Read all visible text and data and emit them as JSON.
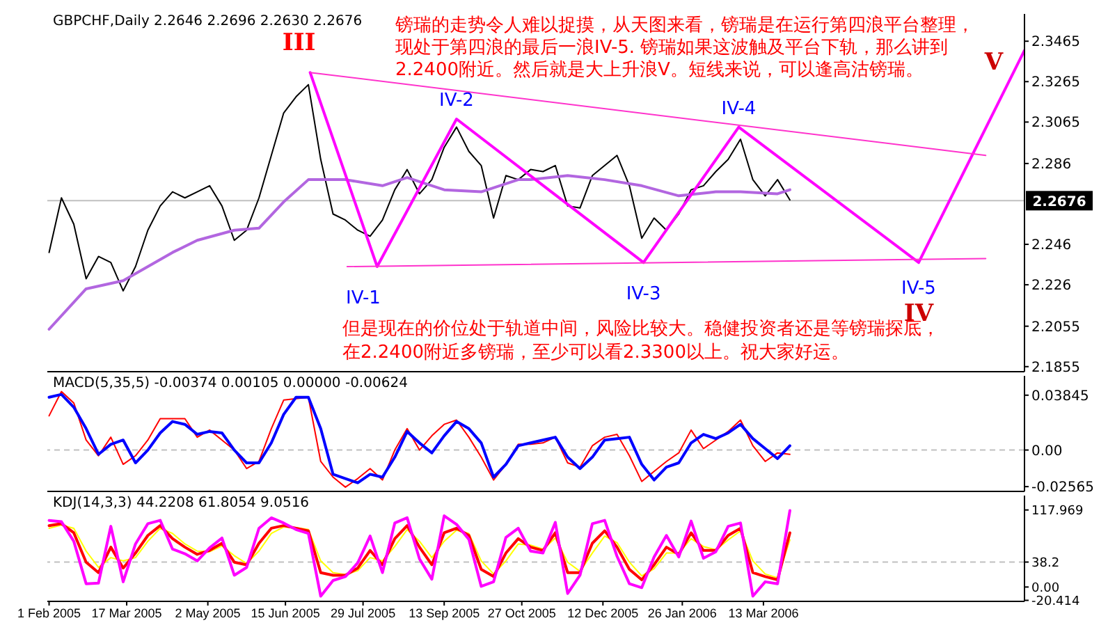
{
  "chart_data": [
    {
      "type": "line",
      "title": "GBPCHF,Daily 2.2646 2.2696 2.2630 2.2676",
      "x": [
        "2005-02-01",
        "2005-02-08",
        "2005-02-15",
        "2005-02-22",
        "2005-03-01",
        "2005-03-08",
        "2005-03-15",
        "2005-03-22",
        "2005-03-29",
        "2005-04-05",
        "2005-04-12",
        "2005-04-19",
        "2005-04-26",
        "2005-05-03",
        "2005-05-10",
        "2005-05-17",
        "2005-05-24",
        "2005-05-31",
        "2005-06-07",
        "2005-06-14",
        "2005-06-21",
        "2005-06-28",
        "2005-07-05",
        "2005-07-12",
        "2005-07-19",
        "2005-07-26",
        "2005-08-02",
        "2005-08-09",
        "2005-08-16",
        "2005-08-23",
        "2005-08-30",
        "2005-09-06",
        "2005-09-13",
        "2005-09-20",
        "2005-09-27",
        "2005-10-04",
        "2005-10-11",
        "2005-10-18",
        "2005-10-25",
        "2005-11-01",
        "2005-11-08",
        "2005-11-15",
        "2005-11-22",
        "2005-11-29",
        "2005-12-06",
        "2005-12-13",
        "2005-12-20",
        "2005-12-27",
        "2006-01-03",
        "2006-01-10",
        "2006-01-17",
        "2006-01-24",
        "2006-01-31",
        "2006-02-07",
        "2006-02-14",
        "2006-02-21",
        "2006-02-28",
        "2006-03-07",
        "2006-03-14",
        "2006-03-21",
        "2006-03-28"
      ],
      "series": [
        {
          "color": "#000000",
          "values": [
            2.242,
            2.269,
            2.256,
            2.229,
            2.24,
            2.237,
            2.223,
            2.235,
            2.253,
            2.265,
            2.272,
            2.269,
            2.272,
            2.275,
            2.265,
            2.248,
            2.253,
            2.269,
            2.29,
            2.311,
            2.319,
            2.325,
            2.288,
            2.261,
            2.258,
            2.253,
            2.25,
            2.258,
            2.273,
            2.283,
            2.271,
            2.278,
            2.294,
            2.304,
            2.292,
            2.285,
            2.259,
            2.28,
            2.278,
            2.283,
            2.282,
            2.285,
            2.265,
            2.264,
            2.28,
            2.285,
            2.29,
            2.275,
            2.249,
            2.259,
            2.253,
            2.261,
            2.273,
            2.275,
            2.282,
            2.288,
            2.298,
            2.278,
            2.27,
            2.278,
            2.268
          ]
        },
        {
          "color": "#b266e0",
          "x": [
            "2005-02-01",
            "2005-02-22",
            "2005-03-15",
            "2005-03-29",
            "2005-04-12",
            "2005-04-26",
            "2005-05-17",
            "2005-05-31",
            "2005-06-14",
            "2005-06-28",
            "2005-07-19",
            "2005-08-09",
            "2005-08-23",
            "2005-09-13",
            "2005-10-04",
            "2005-10-25",
            "2005-11-01",
            "2005-11-22",
            "2005-12-13",
            "2006-01-03",
            "2006-01-24",
            "2006-02-14",
            "2006-02-28",
            "2006-03-21",
            "2006-03-28"
          ],
          "values": [
            2.204,
            2.224,
            2.228,
            2.235,
            2.242,
            2.248,
            2.253,
            2.254,
            2.267,
            2.278,
            2.278,
            2.275,
            2.279,
            2.273,
            2.272,
            2.278,
            2.278,
            2.28,
            2.278,
            2.275,
            2.27,
            2.272,
            2.272,
            2.271,
            2.273
          ]
        },
        {
          "color": "#ff00ff",
          "x": [
            "2005-06-29",
            "2005-08-06",
            "2005-09-20",
            "2006-01-04",
            "2006-02-27",
            "2006-06-09",
            "2006-08-08"
          ],
          "values": [
            2.331,
            2.235,
            2.308,
            2.237,
            2.304,
            2.237,
            2.342
          ]
        },
        {
          "color": "#ff33cc",
          "x": [
            "2005-06-29",
            "2006-07-17"
          ],
          "values": [
            2.331,
            2.29
          ]
        },
        {
          "color": "#ff33cc",
          "x": [
            "2005-07-20",
            "2006-07-17"
          ],
          "values": [
            2.235,
            2.239
          ]
        }
      ],
      "xlim": [
        "2005-01-31",
        "2006-08-08"
      ],
      "ylim": [
        2.183,
        2.36
      ],
      "yticks": [
        2.1855,
        2.2055,
        2.226,
        2.246,
        2.286,
        2.3065,
        2.3265,
        2.3465
      ],
      "ref_lines": [
        {
          "axis": "y",
          "value": 2.2676,
          "label": "2.2676",
          "color": "#c0c0c0"
        }
      ],
      "tick_labels": "y",
      "annotations": [
        "镑瑞的走势令人难以捉摸，从天图来看，镑瑞是在运行第四浪平台整理，",
        "现处于第四浪的最后一浪IV-5. 镑瑞如果这波触及平台下轨，那么讲到",
        "2.2400附近。然后就是大上升浪V。短线来说，可以逢高沽镑瑞。",
        "但是现在的价位处于轨道中间，风险比较大。稳健投资者还是等镑瑞探底，",
        "在2.2400附近多镑瑞，至少可以看2.3300以上。祝大家好运。",
        {
          "text": "III",
          "x": "2005-06-29",
          "y": 2.331
        },
        {
          "text": "IV-1",
          "x": "2005-08-06",
          "y": 2.235
        },
        {
          "text": "IV-2",
          "x": "2005-09-20",
          "y": 2.308
        },
        {
          "text": "IV-3",
          "x": "2006-01-04",
          "y": 2.237
        },
        {
          "text": "IV-4",
          "x": "2006-02-27",
          "y": 2.304
        },
        {
          "text": "IV-5",
          "x": "2006-06-09",
          "y": 2.237
        },
        {
          "text": "IV",
          "x": "2006-06-09",
          "y": 2.237
        },
        {
          "text": "V",
          "x": "2006-08-08",
          "y": 2.342
        }
      ]
    },
    {
      "type": "line",
      "title": "MACD(5,35,5) -0.00374 0.00105 0.00000 -0.00624",
      "x": [
        "2005-02-01",
        "2005-02-08",
        "2005-02-15",
        "2005-02-22",
        "2005-03-01",
        "2005-03-08",
        "2005-03-15",
        "2005-03-22",
        "2005-03-29",
        "2005-04-05",
        "2005-04-12",
        "2005-04-19",
        "2005-04-26",
        "2005-05-03",
        "2005-05-10",
        "2005-05-17",
        "2005-05-24",
        "2005-05-31",
        "2005-06-07",
        "2005-06-14",
        "2005-06-21",
        "2005-06-28",
        "2005-07-05",
        "2005-07-12",
        "2005-07-19",
        "2005-07-26",
        "2005-08-02",
        "2005-08-09",
        "2005-08-16",
        "2005-08-23",
        "2005-08-30",
        "2005-09-06",
        "2005-09-13",
        "2005-09-20",
        "2005-09-27",
        "2005-10-04",
        "2005-10-11",
        "2005-10-18",
        "2005-10-25",
        "2005-11-01",
        "2005-11-08",
        "2005-11-15",
        "2005-11-22",
        "2005-11-29",
        "2005-12-06",
        "2005-12-13",
        "2005-12-20",
        "2005-12-27",
        "2006-01-03",
        "2006-01-10",
        "2006-01-17",
        "2006-01-24",
        "2006-01-31",
        "2006-02-07",
        "2006-02-14",
        "2006-02-21",
        "2006-02-28",
        "2006-03-07",
        "2006-03-14",
        "2006-03-21",
        "2006-03-28"
      ],
      "series": [
        {
          "color": "#ff0000",
          "values": [
            0.024,
            0.041,
            0.033,
            0.007,
            -0.004,
            0.009,
            -0.01,
            -0.004,
            0.007,
            0.022,
            0.022,
            0.022,
            0.009,
            0.014,
            0.007,
            0.0,
            -0.013,
            -0.008,
            0.015,
            0.035,
            0.036,
            0.037,
            -0.008,
            -0.019,
            -0.026,
            -0.02,
            -0.013,
            -0.021,
            0.0,
            0.015,
            0.0,
            0.01,
            0.018,
            0.021,
            0.009,
            -0.005,
            -0.021,
            -0.01,
            0.004,
            0.004,
            0.005,
            0.009,
            -0.009,
            -0.012,
            0.003,
            0.009,
            0.011,
            -0.004,
            -0.022,
            -0.015,
            -0.008,
            -0.002,
            0.014,
            0.001,
            0.007,
            0.013,
            0.021,
            0.003,
            -0.008,
            -0.002,
            -0.003
          ]
        },
        {
          "color": "#0000ff",
          "values": [
            0.037,
            0.039,
            0.03,
            0.015,
            -0.003,
            0.004,
            0.007,
            -0.009,
            0.0,
            0.012,
            0.02,
            0.018,
            0.011,
            0.013,
            0.012,
            0.0,
            -0.009,
            -0.009,
            0.005,
            0.025,
            0.037,
            0.037,
            0.015,
            -0.017,
            -0.02,
            -0.023,
            -0.017,
            -0.019,
            -0.005,
            0.013,
            0.005,
            -0.002,
            0.01,
            0.02,
            0.015,
            0.005,
            -0.019,
            -0.01,
            0.003,
            0.005,
            0.007,
            0.009,
            -0.005,
            -0.013,
            -0.005,
            0.007,
            0.008,
            0.009,
            -0.01,
            -0.021,
            -0.012,
            -0.009,
            0.005,
            0.011,
            0.008,
            0.012,
            0.018,
            0.008,
            0.001,
            -0.006,
            0.003
          ]
        }
      ],
      "xlim": [
        "2005-01-31",
        "2006-08-08"
      ],
      "ylim": [
        -0.029,
        0.052
      ],
      "yticks": [
        0.03845,
        {
          "value": 0,
          "label": "0.00"
        },
        -0.02565
      ],
      "ref_lines": [
        {
          "axis": "y",
          "value": 0,
          "color": "#c0c0c0",
          "line_style": "dashed"
        }
      ],
      "tick_labels": "y"
    },
    {
      "type": "line",
      "title": "KDJ(14,3,3) 44.2208 61.8054 9.0516",
      "x": [
        "2005-02-01",
        "2005-02-08",
        "2005-02-15",
        "2005-02-22",
        "2005-03-01",
        "2005-03-08",
        "2005-03-15",
        "2005-03-22",
        "2005-03-29",
        "2005-04-05",
        "2005-04-12",
        "2005-04-19",
        "2005-04-26",
        "2005-05-03",
        "2005-05-10",
        "2005-05-17",
        "2005-05-24",
        "2005-05-31",
        "2005-06-07",
        "2005-06-14",
        "2005-06-21",
        "2005-06-28",
        "2005-07-05",
        "2005-07-12",
        "2005-07-19",
        "2005-07-26",
        "2005-08-02",
        "2005-08-09",
        "2005-08-16",
        "2005-08-23",
        "2005-08-30",
        "2005-09-06",
        "2005-09-13",
        "2005-09-20",
        "2005-09-27",
        "2005-10-04",
        "2005-10-11",
        "2005-10-18",
        "2005-10-25",
        "2005-11-01",
        "2005-11-08",
        "2005-11-15",
        "2005-11-22",
        "2005-11-29",
        "2005-12-06",
        "2005-12-13",
        "2005-12-20",
        "2005-12-27",
        "2006-01-03",
        "2006-01-10",
        "2006-01-17",
        "2006-01-24",
        "2006-01-31",
        "2006-02-07",
        "2006-02-14",
        "2006-02-21",
        "2006-02-28",
        "2006-03-07",
        "2006-03-14",
        "2006-03-21",
        "2006-03-28"
      ],
      "series": [
        {
          "color": "#ffff00",
          "values": [
            90,
            95,
            90,
            55,
            30,
            45,
            40,
            45,
            70,
            90,
            82,
            66,
            55,
            54,
            63,
            48,
            36,
            55,
            82,
            92,
            91,
            88,
            40,
            22,
            19,
            25,
            45,
            40,
            62,
            88,
            70,
            45,
            70,
            87,
            82,
            40,
            20,
            40,
            66,
            64,
            58,
            75,
            38,
            24,
            52,
            78,
            68,
            38,
            17,
            28,
            52,
            52,
            74,
            62,
            57,
            72,
            86,
            40,
            20,
            14,
            72
          ]
        },
        {
          "color": "#ff0000",
          "values": [
            94,
            97,
            83,
            38,
            22,
            61,
            29,
            52,
            79,
            94,
            74,
            61,
            50,
            56,
            67,
            38,
            34,
            67,
            90,
            94,
            90,
            86,
            22,
            18,
            18,
            29,
            56,
            34,
            74,
            94,
            61,
            34,
            83,
            90,
            79,
            27,
            16,
            52,
            74,
            61,
            56,
            83,
            22,
            22,
            67,
            86,
            61,
            27,
            11,
            34,
            61,
            50,
            83,
            56,
            56,
            79,
            90,
            22,
            16,
            11,
            83
          ]
        },
        {
          "color": "#ff00ff",
          "values": [
            102,
            100,
            70,
            5,
            6,
            93,
            8,
            66,
            97,
            102,
            58,
            51,
            40,
            60,
            75,
            18,
            30,
            90,
            106,
            98,
            88,
            82,
            -14,
            10,
            16,
            37,
            78,
            22,
            98,
            106,
            43,
            12,
            109,
            96,
            73,
            1,
            8,
            76,
            90,
            55,
            52,
            99,
            -10,
            18,
            97,
            102,
            47,
            5,
            -1,
            46,
            79,
            46,
            101,
            44,
            54,
            93,
            98,
            -14,
            8,
            5,
            117
          ]
        }
      ],
      "xlim": [
        "2005-01-31",
        "2006-08-08"
      ],
      "xticks": [
        {
          "value": "2005-02-01",
          "label": "1 Feb 2005"
        },
        {
          "value": "2005-03-17",
          "label": "17 Mar 2005"
        },
        {
          "value": "2005-05-02",
          "label": "2 May 2005"
        },
        {
          "value": "2005-06-15",
          "label": "15 Jun 2005"
        },
        {
          "value": "2005-07-29",
          "label": "29 Jul 2005"
        },
        {
          "value": "2005-09-13",
          "label": "13 Sep 2005"
        },
        {
          "value": "2005-10-27",
          "label": "27 Oct 2005"
        },
        {
          "value": "2005-12-12",
          "label": "12 Dec 2005"
        },
        {
          "value": "2006-01-26",
          "label": "26 Jan 2006"
        },
        {
          "value": "2006-03-13",
          "label": "13 Mar 2006"
        }
      ],
      "ylim": [
        -22,
        140
      ],
      "yticks": [
        117.969,
        38.2,
        {
          "value": 0,
          "label": "0.00"
        },
        -20.414
      ],
      "ref_lines": [
        {
          "axis": "y",
          "value": 38.2,
          "color": "#c0c0c0",
          "line_style": "dashed"
        }
      ]
    }
  ]
}
